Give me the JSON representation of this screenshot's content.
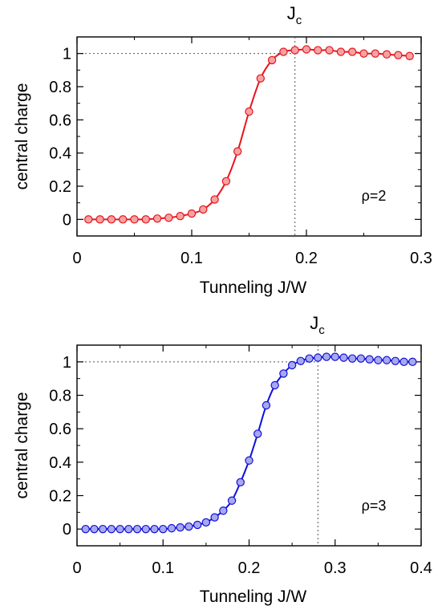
{
  "chart_data": [
    {
      "type": "line",
      "xlabel": "Tunneling J/W",
      "ylabel": "central charge",
      "xlim": [
        0,
        0.3
      ],
      "ylim": [
        -0.1,
        1.1
      ],
      "x_ticks": [
        "0",
        "0.1",
        "0.2",
        "0.3"
      ],
      "y_ticks": [
        "0",
        "0.2",
        "0.4",
        "0.6",
        "0.8",
        "1"
      ],
      "annotation": "ρ=2",
      "critical_label": "J",
      "critical_label_sub": "c",
      "critical_x": 0.19,
      "reference_y": 1,
      "grid": false,
      "color": "#e8141c",
      "marker_fill": "#f4a3a3",
      "series": [
        {
          "x": [
            0.01,
            0.02,
            0.03,
            0.04,
            0.05,
            0.06,
            0.07,
            0.08,
            0.09,
            0.1,
            0.11,
            0.12,
            0.13,
            0.14,
            0.15,
            0.16,
            0.17,
            0.18,
            0.19,
            0.2,
            0.21,
            0.22,
            0.23,
            0.24,
            0.25,
            0.26,
            0.27,
            0.28,
            0.29
          ],
          "y": [
            0.0,
            0.0,
            0.0,
            0.0,
            0.0,
            0.0,
            0.005,
            0.01,
            0.02,
            0.035,
            0.06,
            0.12,
            0.23,
            0.41,
            0.65,
            0.85,
            0.96,
            1.01,
            1.02,
            1.025,
            1.02,
            1.02,
            1.01,
            1.01,
            1.0,
            1.0,
            0.995,
            0.99,
            0.985
          ]
        }
      ]
    },
    {
      "type": "line",
      "xlabel": "Tunneling J/W",
      "ylabel": "central charge",
      "xlim": [
        0,
        0.4
      ],
      "ylim": [
        -0.1,
        1.1
      ],
      "x_ticks": [
        "0",
        "0.1",
        "0.2",
        "0.3",
        "0.4"
      ],
      "y_ticks": [
        "0",
        "0.2",
        "0.4",
        "0.6",
        "0.8",
        "1"
      ],
      "annotation": "ρ=3",
      "critical_label": "J",
      "critical_label_sub": "c",
      "critical_x": 0.28,
      "reference_y": 1,
      "grid": false,
      "color": "#1010d8",
      "marker_fill": "#a8a8f0",
      "series": [
        {
          "x": [
            0.01,
            0.02,
            0.03,
            0.04,
            0.05,
            0.06,
            0.07,
            0.08,
            0.09,
            0.1,
            0.11,
            0.12,
            0.13,
            0.14,
            0.15,
            0.16,
            0.17,
            0.18,
            0.19,
            0.2,
            0.21,
            0.22,
            0.23,
            0.24,
            0.25,
            0.26,
            0.27,
            0.28,
            0.29,
            0.3,
            0.31,
            0.32,
            0.33,
            0.34,
            0.35,
            0.36,
            0.37,
            0.38,
            0.39
          ],
          "y": [
            0.0,
            0.0,
            0.0,
            0.0,
            0.0,
            0.0,
            0.0,
            0.0,
            0.0,
            0.0,
            0.005,
            0.01,
            0.015,
            0.025,
            0.04,
            0.07,
            0.11,
            0.17,
            0.28,
            0.41,
            0.57,
            0.74,
            0.86,
            0.93,
            0.98,
            1.005,
            1.02,
            1.025,
            1.03,
            1.03,
            1.025,
            1.02,
            1.02,
            1.015,
            1.01,
            1.01,
            1.005,
            1.0,
            1.0
          ]
        }
      ]
    }
  ]
}
